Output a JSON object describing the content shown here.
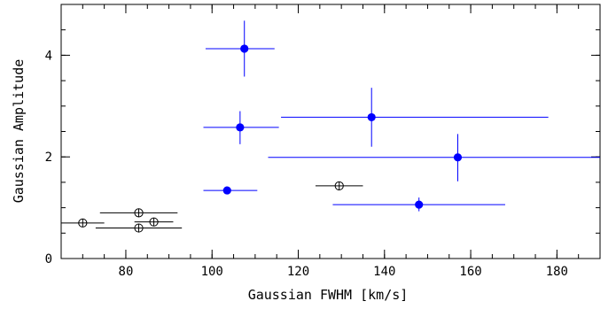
{
  "chart_data": {
    "type": "scatter",
    "title": "",
    "xlabel": "Gaussian FWHM [km/s]",
    "ylabel": "Gaussian Amplitude",
    "xlim": [
      65,
      190
    ],
    "ylim": [
      0,
      5
    ],
    "x_ticks": [
      80,
      100,
      120,
      140,
      160,
      180
    ],
    "y_ticks": [
      0,
      2,
      4
    ],
    "x_minor_step": 5,
    "y_minor_step": 0.5,
    "grid": false,
    "legend": "none",
    "series": [
      {
        "color": "#0000ff",
        "marker": "filled-circle",
        "points": [
          {
            "x": 107.5,
            "y": 4.13,
            "x_lo": 98.5,
            "x_hi": 114.5,
            "y_lo": 3.58,
            "y_hi": 4.68
          },
          {
            "x": 106.5,
            "y": 2.58,
            "x_lo": 98.0,
            "x_hi": 115.5,
            "y_lo": 2.25,
            "y_hi": 2.9
          },
          {
            "x": 103.5,
            "y": 1.34,
            "x_lo": 98.0,
            "x_hi": 110.5,
            "y_lo": 1.34,
            "y_hi": 1.34
          },
          {
            "x": 137.0,
            "y": 2.78,
            "x_lo": 116.0,
            "x_hi": 178.0,
            "y_lo": 2.2,
            "y_hi": 3.36
          },
          {
            "x": 157.0,
            "y": 1.99,
            "x_lo": 113.0,
            "x_hi": 190.0,
            "y_lo": 1.52,
            "y_hi": 2.45
          },
          {
            "x": 148.0,
            "y": 1.06,
            "x_lo": 128.0,
            "x_hi": 168.0,
            "y_lo": 0.93,
            "y_hi": 1.2
          }
        ]
      },
      {
        "color": "#000000",
        "marker": "open-circle-cross",
        "points": [
          {
            "x": 70.0,
            "y": 0.7,
            "x_lo": 65.0,
            "x_hi": 75.0,
            "y_lo": 0.7,
            "y_hi": 0.7
          },
          {
            "x": 83.0,
            "y": 0.9,
            "x_lo": 74.0,
            "x_hi": 92.0,
            "y_lo": 0.9,
            "y_hi": 0.9
          },
          {
            "x": 86.5,
            "y": 0.72,
            "x_lo": 82.0,
            "x_hi": 91.0,
            "y_lo": 0.72,
            "y_hi": 0.72
          },
          {
            "x": 83.0,
            "y": 0.6,
            "x_lo": 73.0,
            "x_hi": 93.0,
            "y_lo": 0.6,
            "y_hi": 0.6
          },
          {
            "x": 129.5,
            "y": 1.43,
            "x_lo": 124.0,
            "x_hi": 135.0,
            "y_lo": 1.43,
            "y_hi": 1.43
          }
        ]
      }
    ]
  }
}
